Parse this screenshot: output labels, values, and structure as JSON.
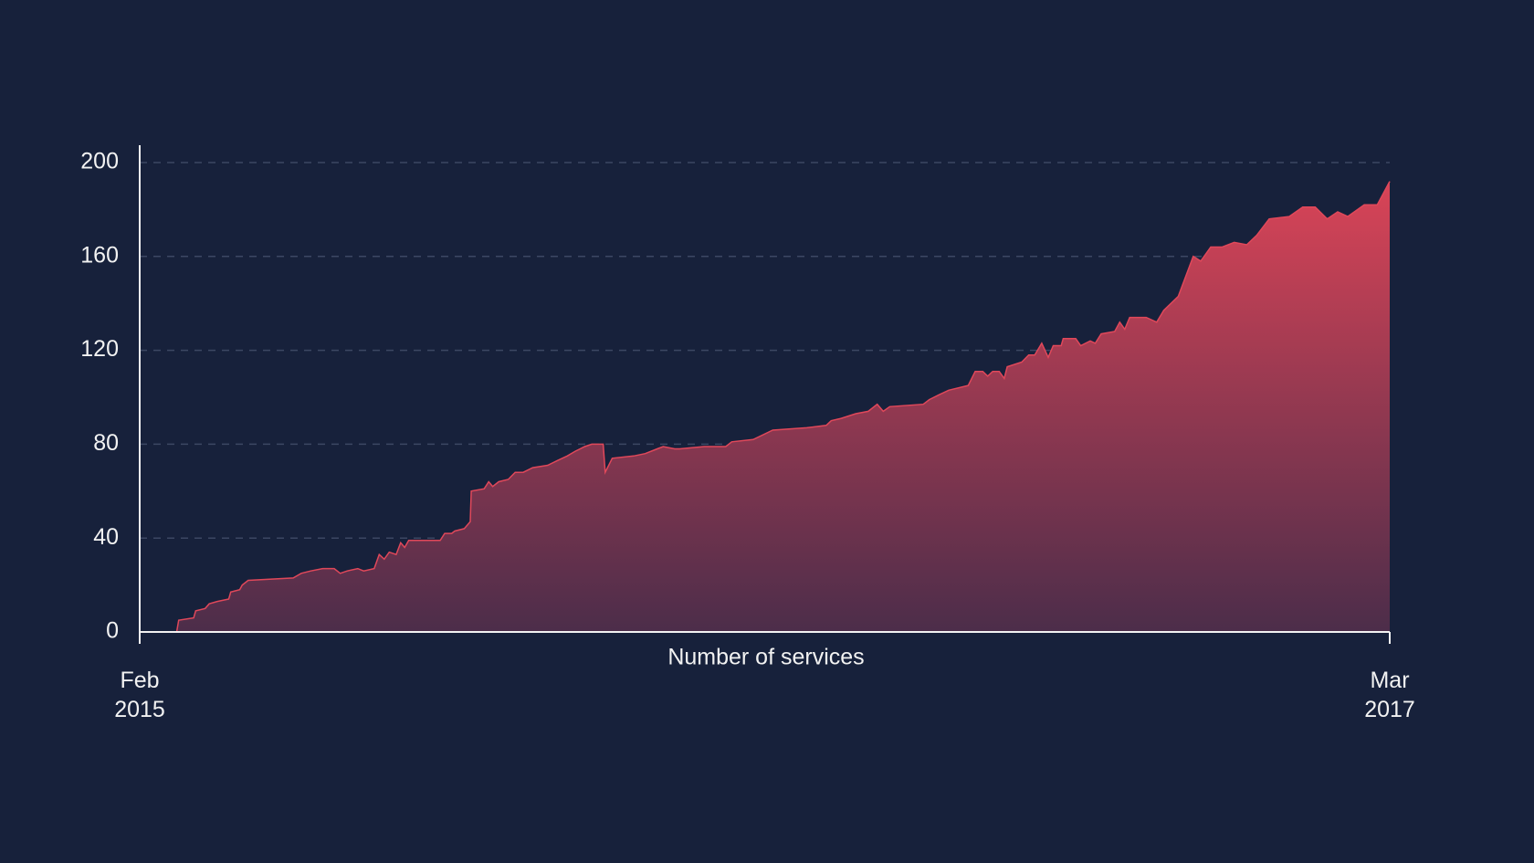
{
  "chart_data": {
    "type": "area",
    "x_label": "Number of services",
    "color": "#e0485a",
    "x": [
      0.74,
      0.78,
      1.08,
      1.12,
      1.31,
      1.39,
      1.55,
      1.78,
      1.82,
      2.0,
      2.05,
      2.17,
      3.07,
      3.23,
      3.42,
      3.66,
      3.89,
      4.01,
      4.15,
      4.36,
      4.48,
      4.69,
      4.79,
      4.89,
      4.99,
      5.13,
      5.22,
      5.3,
      5.38,
      6.01,
      6.1,
      6.24,
      6.3,
      6.49,
      6.61,
      6.63,
      6.89,
      6.98,
      7.06,
      7.18,
      7.37,
      7.51,
      7.67,
      7.86,
      8.16,
      8.35,
      8.55,
      8.71,
      8.9,
      9.04,
      9.27,
      9.31,
      9.45,
      9.88,
      10.11,
      10.35,
      10.47,
      10.7,
      10.8,
      11.29,
      11.72,
      11.84,
      12.27,
      12.66,
      13.34,
      13.73,
      13.83,
      14.03,
      14.32,
      14.57,
      14.75,
      14.87,
      15.0,
      15.67,
      15.79,
      15.98,
      16.18,
      16.57,
      16.71,
      16.86,
      16.96,
      17.06,
      17.19,
      17.29,
      17.35,
      17.64,
      17.78,
      17.9,
      18.04,
      18.17,
      18.27,
      18.43,
      18.47,
      18.72,
      18.82,
      19.01,
      19.11,
      19.23,
      19.5,
      19.6,
      19.7,
      19.8,
      20.13,
      20.34,
      20.48,
      20.77,
      21.07,
      21.22,
      21.42,
      21.65,
      21.89,
      22.14,
      22.34,
      22.59,
      22.99,
      23.26,
      23.51,
      23.75,
      23.96,
      24.16,
      24.49,
      24.75,
      25.0
    ],
    "values": [
      0,
      5,
      6,
      9,
      10,
      12,
      13,
      14,
      17,
      18,
      20,
      22,
      23,
      25,
      26,
      27,
      27,
      25,
      26,
      27,
      26,
      27,
      33,
      31,
      34,
      33,
      38,
      36,
      39,
      39,
      42,
      42,
      43,
      44,
      47,
      60,
      61,
      64,
      62,
      64,
      65,
      68,
      68,
      70,
      71,
      73,
      75,
      77,
      79,
      80,
      80,
      68,
      74,
      75,
      76,
      78,
      79,
      78,
      78,
      79,
      79,
      81,
      82,
      86,
      87,
      88,
      90,
      91,
      93,
      94,
      97,
      94,
      96,
      97,
      99,
      101,
      103,
      105,
      111,
      111,
      109,
      111,
      111,
      108,
      113,
      115,
      118,
      118,
      123,
      117,
      122,
      122,
      125,
      125,
      122,
      124,
      123,
      127,
      128,
      132,
      129,
      134,
      134,
      132,
      137,
      143,
      160,
      158,
      164,
      164,
      166,
      165,
      169,
      176,
      177,
      181,
      181,
      176,
      179,
      177,
      182,
      182,
      192
    ],
    "xlim": [
      0,
      25
    ],
    "xticks": [
      {
        "value": 0,
        "label": "Feb\n2015"
      },
      {
        "value": 25,
        "label": "Mar\n2017"
      }
    ],
    "ylim": [
      0,
      200
    ],
    "yticks": [
      0,
      40,
      80,
      120,
      160,
      200
    ],
    "grid": true
  }
}
